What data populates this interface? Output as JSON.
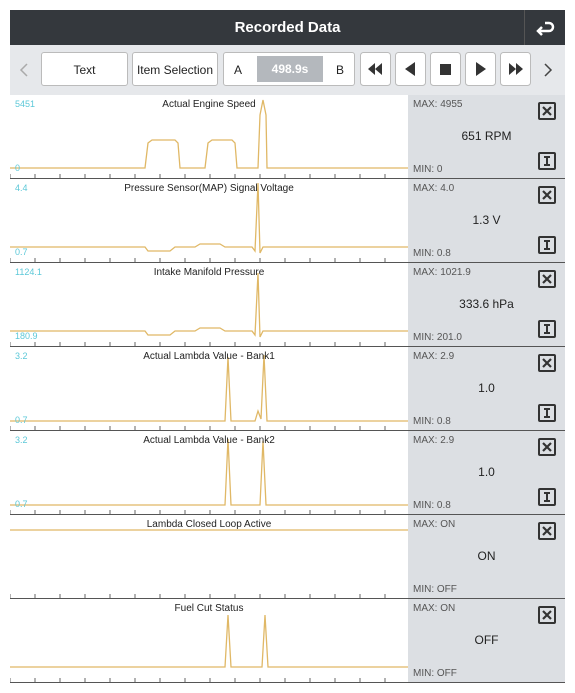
{
  "header": {
    "title": "Recorded Data"
  },
  "toolbar": {
    "text_button": "Text",
    "item_selection_button": "Item Selection",
    "a_label": "A",
    "time": "498.9s",
    "b_label": "B"
  },
  "rows": [
    {
      "title": "Actual Engine Speed",
      "scale_max": "5451",
      "scale_min": "0",
      "max": "MAX: 4955",
      "value": "651 RPM",
      "min": "MIN: 0"
    },
    {
      "title": "Pressure Sensor(MAP) Signal Voltage",
      "scale_max": "4.4",
      "scale_min": "0.7",
      "max": "MAX: 4.0",
      "value": "1.3 V",
      "min": "MIN: 0.8"
    },
    {
      "title": "Intake Manifold Pressure",
      "scale_max": "1124.1",
      "scale_min": "180.9",
      "max": "MAX: 1021.9",
      "value": "333.6 hPa",
      "min": "MIN: 201.0"
    },
    {
      "title": "Actual Lambda Value - Bank1",
      "scale_max": "3.2",
      "scale_min": "0.7",
      "max": "MAX: 2.9",
      "value": "1.0",
      "min": "MIN: 0.8"
    },
    {
      "title": "Actual Lambda Value - Bank2",
      "scale_max": "3.2",
      "scale_min": "0.7",
      "max": "MAX: 2.9",
      "value": "1.0",
      "min": "MIN: 0.8"
    },
    {
      "title": "Lambda Closed Loop Active",
      "max": "MAX: ON",
      "value": "ON",
      "min": "MIN: OFF"
    },
    {
      "title": "Fuel Cut Status",
      "max": "MAX: ON",
      "value": "OFF",
      "min": "MIN: OFF"
    }
  ]
}
